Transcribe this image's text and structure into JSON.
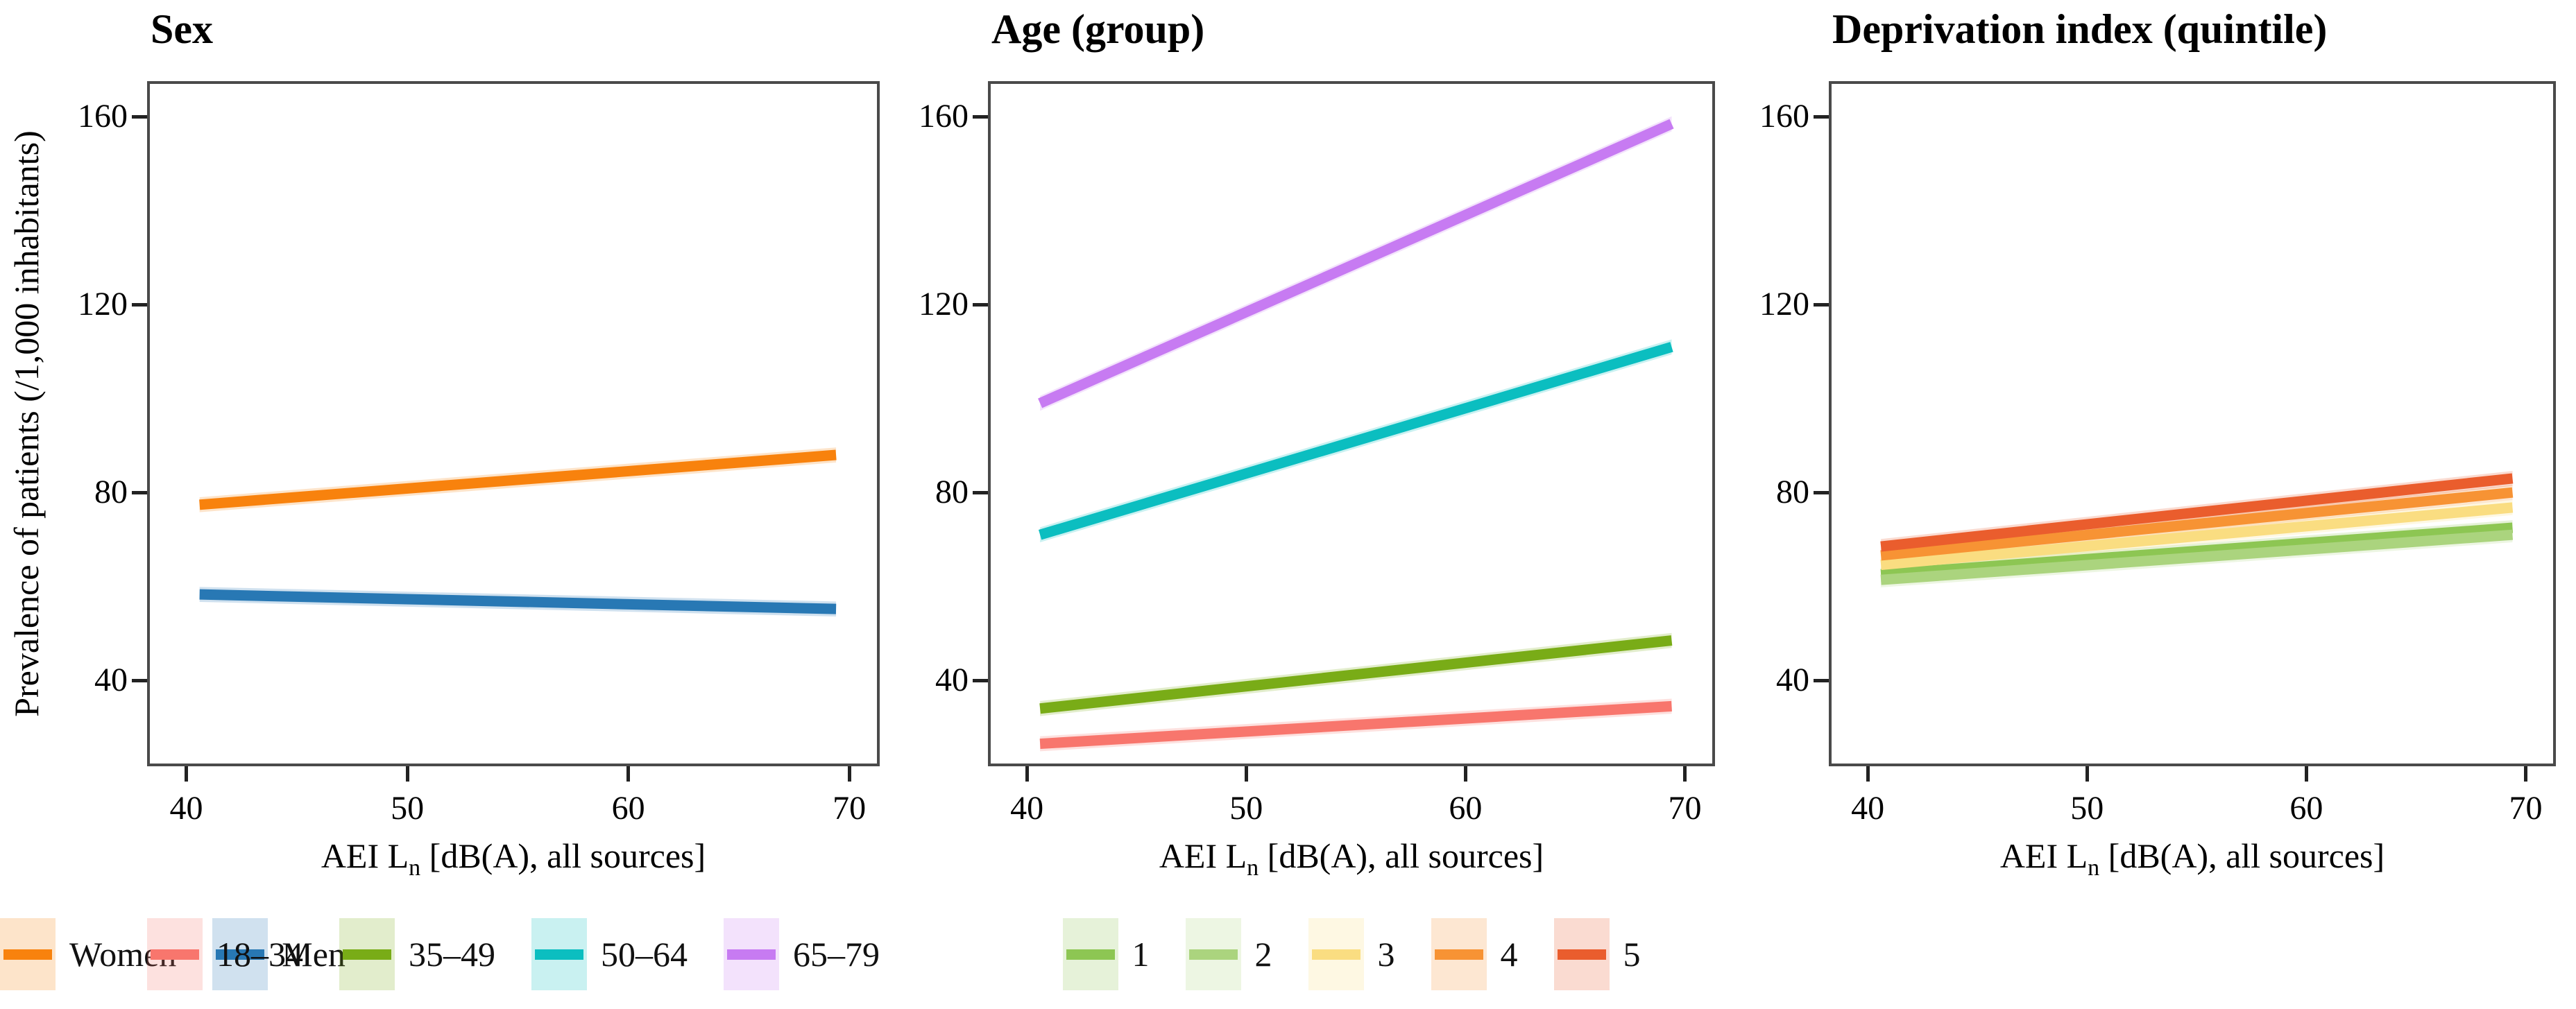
{
  "figure": {
    "background": "#ffffff",
    "border_color": "#4a4a4a",
    "tick_color": "#222222"
  },
  "y_axis_title": "Prevalence of patients (/1,000 inhabitants)",
  "x_axis_title": {
    "prefix": "AEI L",
    "sub": "n",
    "suffix": " [dB(A), all sources]"
  },
  "axis": {
    "xlim": [
      38.35,
      71.25
    ],
    "ylim": [
      22.3,
      167.0
    ],
    "xticks": [
      40,
      50,
      60,
      70
    ],
    "yticks": [
      160,
      120,
      80,
      40
    ]
  },
  "chart_data": [
    {
      "type": "line",
      "title": "Sex",
      "xlabel": "AEI Ln [dB(A), all sources]",
      "ylabel": "Prevalence of patients (/1,000 inhabitants)",
      "x_range": [
        40.6,
        69.4
      ],
      "xlim": [
        38.35,
        71.25
      ],
      "ylim": [
        22.3,
        167.0
      ],
      "legend_position": "bottom",
      "grid": false,
      "series": [
        {
          "name": "Women",
          "color": "#F8820D",
          "y": [
            77.4,
            88.0
          ],
          "ci_halfwidth": 1.6
        },
        {
          "name": "Men",
          "color": "#2878B4",
          "y": [
            58.3,
            55.2
          ],
          "ci_halfwidth": 1.6
        }
      ]
    },
    {
      "type": "line",
      "title": "Age (group)",
      "xlabel": "AEI Ln [dB(A), all sources]",
      "x_range": [
        40.6,
        69.4
      ],
      "xlim": [
        38.35,
        71.25
      ],
      "ylim": [
        22.3,
        167.0
      ],
      "legend_position": "bottom",
      "grid": false,
      "series": [
        {
          "name": "18–34",
          "color": "#F8766D",
          "y": [
            26.5,
            34.5
          ],
          "ci_halfwidth": 1.6
        },
        {
          "name": "35–49",
          "color": "#79AC17",
          "y": [
            34.0,
            48.5
          ],
          "ci_halfwidth": 1.6
        },
        {
          "name": "50–64",
          "color": "#0BBEC0",
          "y": [
            71.0,
            111.0
          ],
          "ci_halfwidth": 1.6
        },
        {
          "name": "65–79",
          "color": "#C77BF2",
          "y": [
            99.0,
            158.5
          ],
          "ci_halfwidth": 1.6
        }
      ]
    },
    {
      "type": "line",
      "title": "Deprivation index (quintile)",
      "xlabel": "AEI Ln [dB(A), all sources]",
      "x_range": [
        40.6,
        69.4
      ],
      "xlim": [
        38.35,
        71.25
      ],
      "ylim": [
        22.3,
        167.0
      ],
      "legend_position": "bottom",
      "grid": false,
      "series": [
        {
          "name": "1",
          "color": "#8DC653",
          "y": [
            62.6,
            72.5
          ],
          "ci_halfwidth": 1.6
        },
        {
          "name": "2",
          "color": "#ABD47E",
          "y": [
            61.4,
            71.0
          ],
          "ci_halfwidth": 1.6
        },
        {
          "name": "3",
          "color": "#FADD81",
          "y": [
            64.6,
            76.8
          ],
          "ci_halfwidth": 1.6
        },
        {
          "name": "4",
          "color": "#F79334",
          "y": [
            66.6,
            80.0
          ],
          "ci_halfwidth": 1.6
        },
        {
          "name": "5",
          "color": "#EA5D2D",
          "y": [
            68.5,
            83.0
          ],
          "ci_halfwidth": 1.6
        }
      ]
    }
  ]
}
